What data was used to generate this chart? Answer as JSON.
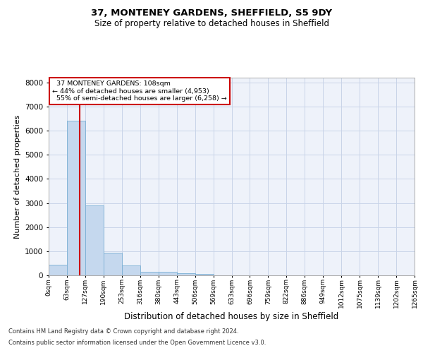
{
  "title1": "37, MONTENEY GARDENS, SHEFFIELD, S5 9DY",
  "title2": "Size of property relative to detached houses in Sheffield",
  "xlabel": "Distribution of detached houses by size in Sheffield",
  "ylabel": "Number of detached properties",
  "footnote1": "Contains HM Land Registry data © Crown copyright and database right 2024.",
  "footnote2": "Contains public sector information licensed under the Open Government Licence v3.0.",
  "bin_labels": [
    "0sqm",
    "63sqm",
    "127sqm",
    "190sqm",
    "253sqm",
    "316sqm",
    "380sqm",
    "443sqm",
    "506sqm",
    "569sqm",
    "633sqm",
    "696sqm",
    "759sqm",
    "822sqm",
    "886sqm",
    "949sqm",
    "1012sqm",
    "1075sqm",
    "1139sqm",
    "1202sqm",
    "1265sqm"
  ],
  "bar_values": [
    450,
    6400,
    2900,
    950,
    400,
    150,
    150,
    100,
    70,
    0,
    0,
    0,
    0,
    0,
    0,
    0,
    0,
    0,
    0,
    0
  ],
  "bar_color": "#c5d8ee",
  "bar_edge_color": "#7aafd4",
  "property_label": "37 MONTENEY GARDENS: 108sqm",
  "pct_smaller": 44,
  "n_smaller": 4953,
  "pct_larger_semi": 55,
  "n_larger_semi": 6258,
  "vline_color": "#cc0000",
  "vline_bin_index": 1.7,
  "ylim": [
    0,
    8200
  ],
  "yticks": [
    0,
    1000,
    2000,
    3000,
    4000,
    5000,
    6000,
    7000,
    8000
  ],
  "grid_color": "#c8d4e8",
  "bg_color": "#eef2fa"
}
